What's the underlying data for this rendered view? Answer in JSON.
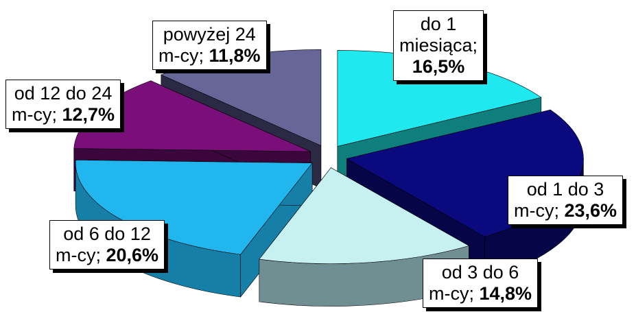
{
  "chart_data": {
    "type": "pie",
    "style": "3d-exploded",
    "legend": "none",
    "slices": [
      {
        "label_l1": "do 1",
        "label_l2": "miesiąca;",
        "value": 16.5,
        "value_text": "16,5%",
        "top": "#1fe8ef",
        "side": "#0f7f7d"
      },
      {
        "label_l1": "od 1 do 3",
        "label_l2": "m-cy;",
        "value": 23.6,
        "value_text": "23,6%",
        "top": "#0a0a7e",
        "side": "#050548"
      },
      {
        "label_l1": "od 3 do 6",
        "label_l2": "m-cy;",
        "value": 14.8,
        "value_text": "14,8%",
        "top": "#c7f1f1",
        "side": "#6f8f93"
      },
      {
        "label_l1": "od 6 do 12",
        "label_l2": "m-cy;",
        "value": 20.6,
        "value_text": "20,6%",
        "top": "#22b6ee",
        "side": "#157fa8"
      },
      {
        "label_l1": "od 12 do 24",
        "label_l2": "m-cy;",
        "value": 12.7,
        "value_text": "12,7%",
        "top": "#7a0f7a",
        "side": "#3a063c"
      },
      {
        "label_l1": "powyżej 24",
        "label_l2": "m-cy;",
        "value": 11.8,
        "value_text": "11,8%",
        "top": "#666699",
        "side": "#2a2a44"
      }
    ]
  }
}
